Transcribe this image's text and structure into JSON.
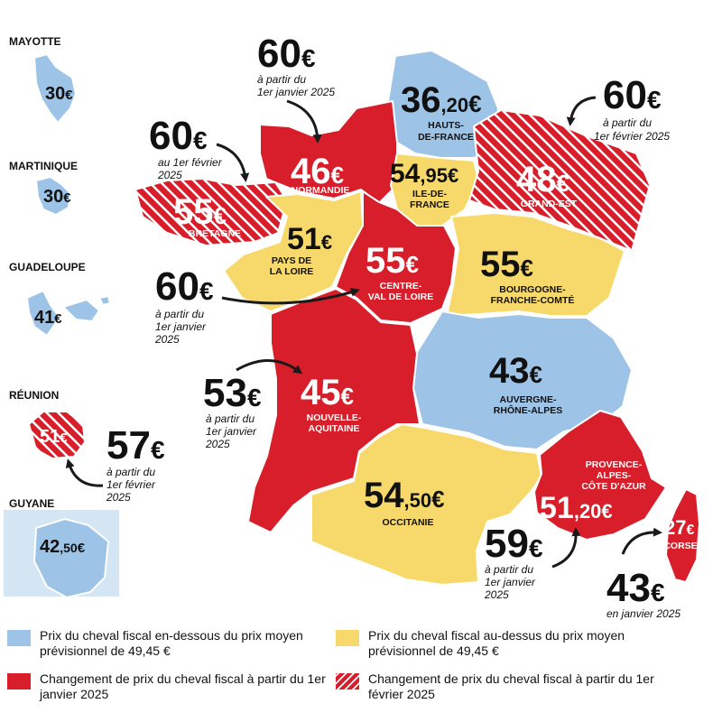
{
  "colors": {
    "below": "#9dc3e6",
    "above": "#f7d96b",
    "change_jan": "#d71e2a",
    "change_feb": "hatched #d71e2a/#ffffff"
  },
  "regions": {
    "hdf": {
      "int": "36",
      "dec": ",20",
      "eur": "€",
      "name1": "HAUTS-",
      "name2": "DE-FRANCE"
    },
    "norm": {
      "int": "46",
      "eur": "€",
      "name1": "NORMANDIE"
    },
    "idf": {
      "int": "54",
      "dec": ",95",
      "eur": "€",
      "name1": "ILE-DE-",
      "name2": "FRANCE"
    },
    "ge": {
      "int": "48",
      "eur": "€",
      "name1": "GRAND-EST"
    },
    "bret": {
      "int": "55",
      "eur": "€",
      "name1": "BRETAGNE"
    },
    "pdl": {
      "int": "51",
      "eur": "€",
      "name1": "PAYS DE",
      "name2": "LA LOIRE"
    },
    "cvl": {
      "int": "55",
      "eur": "€",
      "name1": "CENTRE-",
      "name2": "VAL DE LOIRE"
    },
    "bfc": {
      "int": "55",
      "eur": "€",
      "name1": "BOURGOGNE-",
      "name2": "FRANCHE-COMTÉ"
    },
    "ara": {
      "int": "43",
      "eur": "€",
      "name1": "AUVERGNE-",
      "name2": "RHÔNE-ALPES"
    },
    "na": {
      "int": "45",
      "eur": "€",
      "name1": "NOUVELLE-",
      "name2": "AQUITAINE"
    },
    "occ": {
      "int": "54",
      "dec": ",50",
      "eur": "€",
      "name1": "OCCITANIE"
    },
    "paca": {
      "int": "51",
      "dec": ",20",
      "eur": "€",
      "name1": "PROVENCE-",
      "name2": "ALPES-",
      "name3": "CÔTE D'AZUR"
    },
    "corse": {
      "int": "27",
      "eur": "€",
      "name1": "CORSE"
    }
  },
  "overseas": {
    "mayotte": {
      "title": "MAYOTTE",
      "int": "30",
      "eur": "€"
    },
    "martinique": {
      "title": "MARTINIQUE",
      "int": "30",
      "eur": "€"
    },
    "guadeloupe": {
      "title": "GUADELOUPE",
      "int": "41",
      "eur": "€"
    },
    "reunion": {
      "title": "RÉUNION",
      "int": "51",
      "eur": "€"
    },
    "guyane": {
      "title": "GUYANE",
      "int": "42",
      "dec": ",50",
      "eur": "€"
    }
  },
  "notes": {
    "norm": {
      "price": "60",
      "eur": "€",
      "l1": "à partir du",
      "l2": "1er janvier 2025"
    },
    "ge": {
      "price": "60",
      "eur": "€",
      "l1": "à partir du",
      "l2": "1er février 2025"
    },
    "bret": {
      "price": "60",
      "eur": "€",
      "l1": "au 1er février",
      "l2": "2025"
    },
    "cvl": {
      "price": "60",
      "eur": "€",
      "l1": "à partir du",
      "l2": "1er janvier",
      "l3": "2025"
    },
    "na": {
      "price": "53",
      "eur": "€",
      "l1": "à partir du",
      "l2": "1er janvier",
      "l3": "2025"
    },
    "reunion": {
      "price": "57",
      "eur": "€",
      "l1": "à partir du",
      "l2": "1er février",
      "l3": "2025"
    },
    "paca": {
      "price": "59",
      "eur": "€",
      "l1": "à partir du",
      "l2": "1er janvier",
      "l3": "2025"
    },
    "corse": {
      "price": "43",
      "eur": "€",
      "l1": "en janvier 2025"
    }
  },
  "legend": {
    "blue": "Prix du cheval fiscal en-dessous du prix moyen prévisionnel de 49,45 €",
    "yellow": "Prix du cheval fiscal au-dessus du prix moyen prévisionnel de 49,45 €",
    "red": "Changement de prix du cheval fiscal à partir du 1er janvier 2025",
    "hatch": "Changement de prix du cheval fiscal à partir du 1er février 2025"
  }
}
